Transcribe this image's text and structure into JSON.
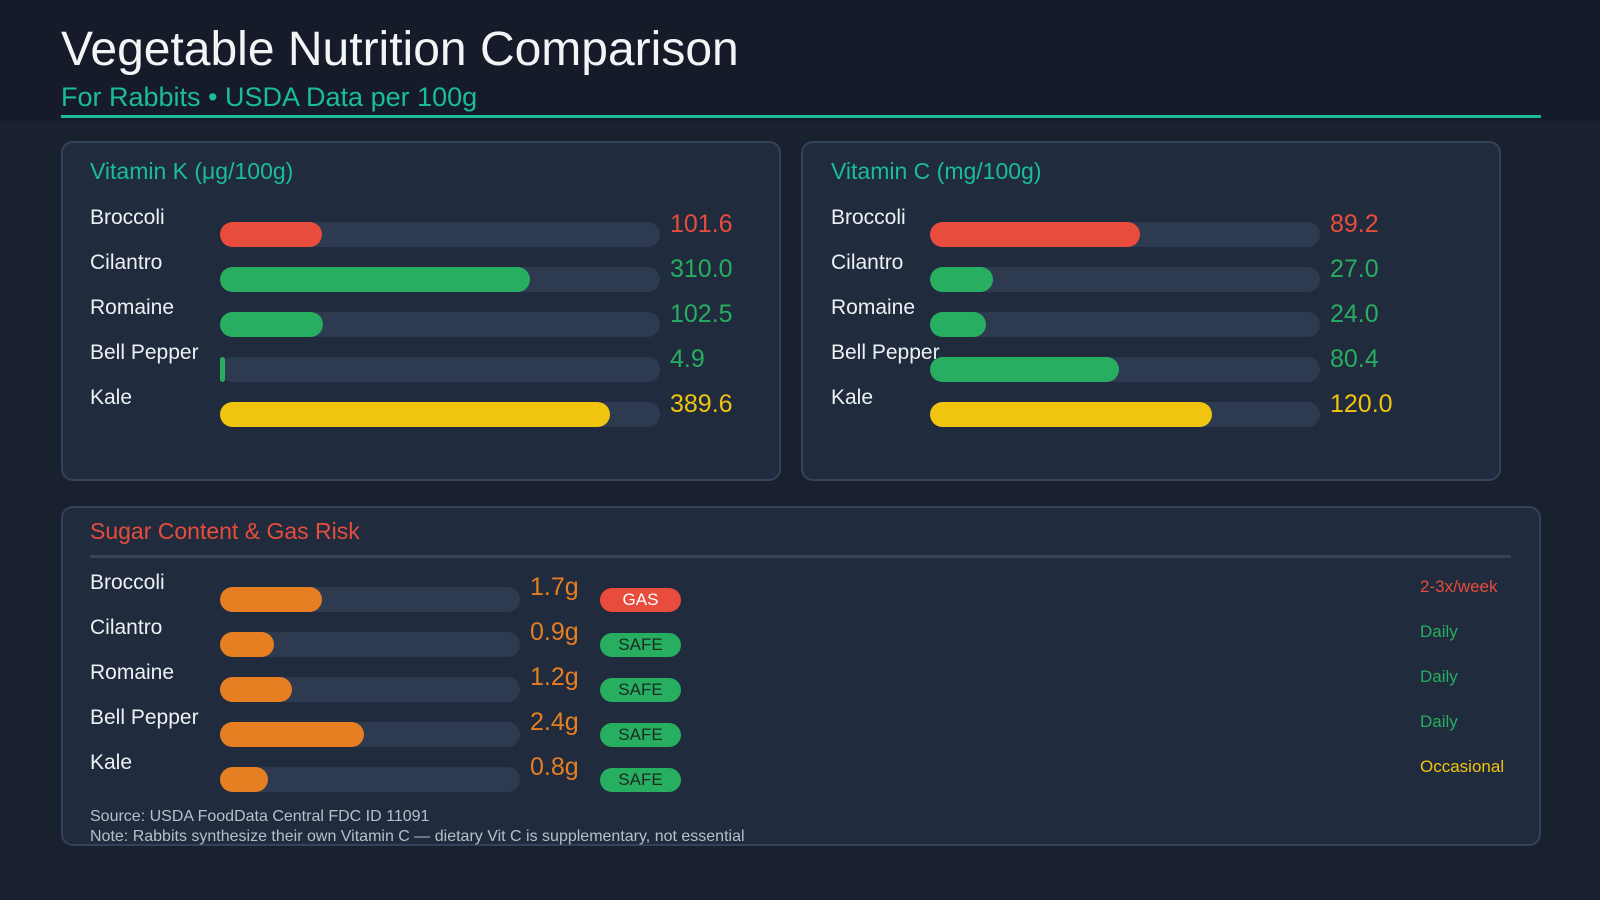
{
  "header": {
    "title": "Vegetable Nutrition Comparison",
    "subtitle": "For Rabbits  •  USDA Data per 100g"
  },
  "colors": {
    "accent": "#1abc9c",
    "red": "#e74c3c",
    "green": "#27ae60",
    "yellow": "#f1c40f",
    "orange": "#e67e22"
  },
  "chart_data": [
    {
      "type": "bar",
      "title": "Vitamin K (μg/100g)",
      "categories": [
        "Broccoli",
        "Cilantro",
        "Romaine",
        "Bell Pepper",
        "Kale"
      ],
      "values": [
        101.6,
        310.0,
        102.5,
        4.9,
        389.6
      ],
      "labels": [
        "101.6",
        "310.0",
        "102.5",
        "4.9",
        "389.6"
      ],
      "colors": [
        "#e74c3c",
        "#27ae60",
        "#27ae60",
        "#27ae60",
        "#f1c40f"
      ],
      "xlim": [
        0,
        440
      ]
    },
    {
      "type": "bar",
      "title": "Vitamin C (mg/100g)",
      "categories": [
        "Broccoli",
        "Cilantro",
        "Romaine",
        "Bell Pepper",
        "Kale"
      ],
      "values": [
        89.2,
        27.0,
        24.0,
        80.4,
        120.0
      ],
      "labels": [
        "89.2",
        "27.0",
        "24.0",
        "80.4",
        "120.0"
      ],
      "colors": [
        "#e74c3c",
        "#27ae60",
        "#27ae60",
        "#27ae60",
        "#f1c40f"
      ],
      "xlim": [
        0,
        166
      ]
    },
    {
      "type": "bar",
      "title": "Sugar Content & Gas Risk",
      "categories": [
        "Broccoli",
        "Cilantro",
        "Romaine",
        "Bell Pepper",
        "Kale"
      ],
      "values": [
        1.7,
        0.9,
        1.2,
        2.4,
        0.8
      ],
      "labels": [
        "1.7g",
        "0.9g",
        "1.2g",
        "2.4g",
        "0.8g"
      ],
      "colors": [
        "#e67e22",
        "#e67e22",
        "#e67e22",
        "#e67e22",
        "#e67e22"
      ],
      "xlim": [
        0,
        5
      ],
      "badges": [
        "GAS",
        "SAFE",
        "SAFE",
        "SAFE",
        "SAFE"
      ],
      "badge_colors": [
        "#e74c3c",
        "#27ae60",
        "#27ae60",
        "#27ae60",
        "#27ae60"
      ],
      "frequency": [
        "2-3x/week",
        "Daily",
        "Daily",
        "Daily",
        "Occasional"
      ],
      "frequency_colors": [
        "#e74c3c",
        "#27ae60",
        "#27ae60",
        "#27ae60",
        "#f1c40f"
      ]
    }
  ],
  "footer": {
    "source": "Source: USDA FoodData Central FDC ID 11091",
    "note": "Note: Rabbits synthesize their own Vitamin C — dietary Vit C is supplementary, not essential"
  }
}
